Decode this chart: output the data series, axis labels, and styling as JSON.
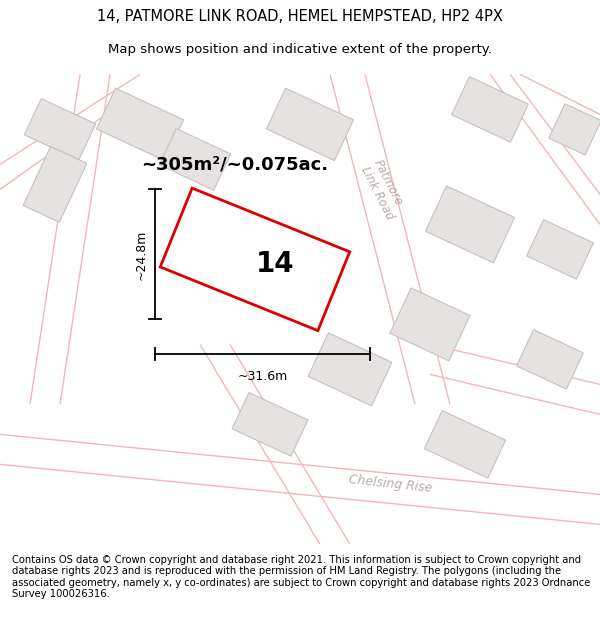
{
  "title_line1": "14, PATMORE LINK ROAD, HEMEL HEMPSTEAD, HP2 4PX",
  "title_line2": "Map shows position and indicative extent of the property.",
  "footer_text": "Contains OS data © Crown copyright and database right 2021. This information is subject to Crown copyright and database rights 2023 and is reproduced with the permission of HM Land Registry. The polygons (including the associated geometry, namely x, y co-ordinates) are subject to Crown copyright and database rights 2023 Ordnance Survey 100026316.",
  "area_label": "~305m²/~0.075ac.",
  "plot_number": "14",
  "width_label": "~31.6m",
  "height_label": "~24.8m",
  "map_bg": "#f7f4f4",
  "road_line_color": "#f0b8b8",
  "building_fill": "#e6e2e2",
  "building_edge": "#c8c0c0",
  "plot_fill": "#ffffff",
  "plot_edge": "#dd0000",
  "road_label_color": "#b8aaaa",
  "dim_color": "#000000",
  "title_fontsize": 10.5,
  "subtitle_fontsize": 9.5,
  "footer_fontsize": 7.2,
  "area_fontsize": 13,
  "plot_num_fontsize": 20,
  "dim_fontsize": 9
}
